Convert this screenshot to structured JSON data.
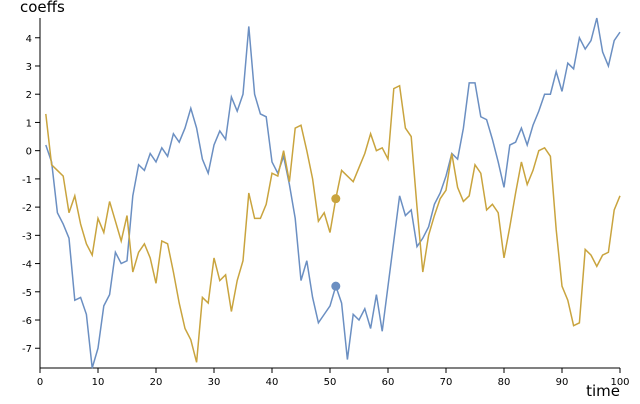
{
  "chart_data": {
    "type": "line",
    "x_label": "time",
    "y_label": "coeffs",
    "x": [
      1,
      2,
      3,
      4,
      5,
      6,
      7,
      8,
      9,
      10,
      11,
      12,
      13,
      14,
      15,
      16,
      17,
      18,
      19,
      20,
      21,
      22,
      23,
      24,
      25,
      26,
      27,
      28,
      29,
      30,
      31,
      32,
      33,
      34,
      35,
      36,
      37,
      38,
      39,
      40,
      41,
      42,
      43,
      44,
      45,
      46,
      47,
      48,
      49,
      50,
      51,
      52,
      53,
      54,
      55,
      56,
      57,
      58,
      59,
      60,
      61,
      62,
      63,
      64,
      65,
      66,
      67,
      68,
      69,
      70,
      71,
      72,
      73,
      74,
      75,
      76,
      77,
      78,
      79,
      80,
      81,
      82,
      83,
      84,
      85,
      86,
      87,
      88,
      89,
      90,
      91,
      92,
      93,
      94,
      95,
      96,
      97,
      98,
      99,
      100
    ],
    "series": [
      {
        "color": "#6b8fc2",
        "values": [
          0.2,
          -0.4,
          -2.2,
          -2.6,
          -3.1,
          -5.3,
          -5.2,
          -5.8,
          -7.7,
          -7.0,
          -5.5,
          -5.1,
          -3.6,
          -4.0,
          -3.9,
          -1.6,
          -0.5,
          -0.7,
          -0.1,
          -0.4,
          0.1,
          -0.2,
          0.6,
          0.3,
          0.8,
          1.5,
          0.8,
          -0.3,
          -0.8,
          0.2,
          0.7,
          0.4,
          1.9,
          1.4,
          2.0,
          4.4,
          2.0,
          1.3,
          1.2,
          -0.4,
          -0.8,
          -0.2,
          -1.2,
          -2.4,
          -4.6,
          -3.9,
          -5.2,
          -6.1,
          -5.8,
          -5.5,
          -4.8,
          -5.4,
          -7.4,
          -5.8,
          -6.0,
          -5.6,
          -6.3,
          -5.1,
          -6.4,
          -4.8,
          -3.2,
          -1.6,
          -2.3,
          -2.1,
          -3.4,
          -3.1,
          -2.7,
          -1.9,
          -1.5,
          -0.9,
          -0.1,
          -0.3,
          0.8,
          2.4,
          2.4,
          1.2,
          1.1,
          0.4,
          -0.4,
          -1.3,
          0.2,
          0.3,
          0.8,
          0.2,
          0.9,
          1.4,
          2.0,
          2.0,
          2.8,
          2.1,
          3.1,
          2.9,
          4.0,
          3.6,
          3.9,
          4.7,
          3.5,
          3.0,
          3.9,
          4.2
        ]
      },
      {
        "color": "#c9a43e",
        "values": [
          1.3,
          -0.5,
          -0.7,
          -0.9,
          -2.2,
          -1.6,
          -2.6,
          -3.3,
          -3.7,
          -2.4,
          -2.9,
          -1.8,
          -2.5,
          -3.2,
          -2.3,
          -4.3,
          -3.6,
          -3.3,
          -3.8,
          -4.7,
          -3.2,
          -3.3,
          -4.3,
          -5.4,
          -6.3,
          -6.7,
          -7.5,
          -5.2,
          -5.4,
          -3.8,
          -4.6,
          -4.4,
          -5.7,
          -4.6,
          -3.9,
          -1.5,
          -2.4,
          -2.4,
          -1.9,
          -0.8,
          -0.9,
          0.0,
          -1.1,
          0.8,
          0.9,
          0.0,
          -1.0,
          -2.5,
          -2.2,
          -2.9,
          -1.7,
          -0.7,
          -0.9,
          -1.1,
          -0.6,
          -0.1,
          0.6,
          0.0,
          0.1,
          -0.3,
          2.2,
          2.3,
          0.8,
          0.5,
          -2.0,
          -4.3,
          -3.0,
          -2.3,
          -1.7,
          -1.4,
          -0.1,
          -1.3,
          -1.8,
          -1.6,
          -0.5,
          -0.8,
          -2.1,
          -1.9,
          -2.2,
          -3.8,
          -2.7,
          -1.5,
          -0.4,
          -1.2,
          -0.7,
          0.0,
          0.1,
          -0.2,
          -2.8,
          -4.8,
          -5.3,
          -6.2,
          -6.1,
          -3.5,
          -3.7,
          -4.1,
          -3.7,
          -3.6,
          -2.1,
          -1.6
        ]
      }
    ],
    "highlighted_x": 51,
    "xlim": [
      0,
      100
    ],
    "xticks": [
      0,
      10,
      20,
      30,
      40,
      50,
      60,
      70,
      80,
      90,
      100
    ],
    "ylim": [
      -7.7,
      4.7
    ],
    "yticks": [
      -7,
      -6,
      -5,
      -4,
      -3,
      -2,
      -1,
      0,
      1,
      2,
      3,
      4
    ]
  }
}
